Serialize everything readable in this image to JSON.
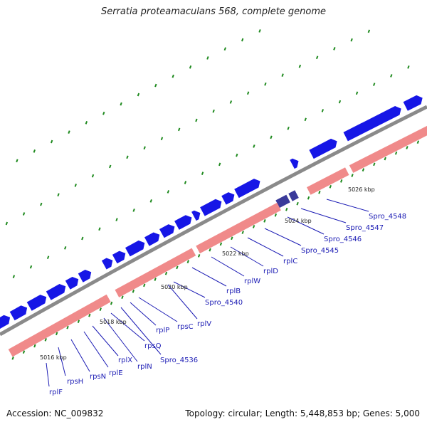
{
  "title": "Serratia proteamaculans 568, complete genome",
  "footer": {
    "accession": "Accession: NC_009832",
    "topology": "Topology: circular; Length: 5,448,853 bp; Genes: 5,000"
  },
  "colors": {
    "backbone": "#8a8a8a",
    "forward_gene": "#1616e6",
    "reverse_gene": "#f08a8a",
    "selected_gene": "#3a3a9a",
    "ticks": "#1f8a1f",
    "label": "#1b1bb4"
  },
  "scale_labels": [
    {
      "text": "5016 kbp"
    },
    {
      "text": "5018 kbp"
    },
    {
      "text": "5020 kbp"
    },
    {
      "text": "5022 kbp"
    },
    {
      "text": "5024 kbp"
    },
    {
      "text": "5026 kbp"
    }
  ],
  "gene_labels": [
    {
      "text": "rplF"
    },
    {
      "text": "rpsH"
    },
    {
      "text": "rpsN"
    },
    {
      "text": "rplE"
    },
    {
      "text": "rplX"
    },
    {
      "text": "rplN"
    },
    {
      "text": "rpsQ"
    },
    {
      "text": "Spro_4536"
    },
    {
      "text": "rplP"
    },
    {
      "text": "rpsC"
    },
    {
      "text": "rplV"
    },
    {
      "text": "Spro_4540"
    },
    {
      "text": "rplB"
    },
    {
      "text": "rplW"
    },
    {
      "text": "rplD"
    },
    {
      "text": "rplC"
    },
    {
      "text": "Spro_4545"
    },
    {
      "text": "Spro_4546"
    },
    {
      "text": "Spro_4547"
    },
    {
      "text": "Spro_4548"
    }
  ]
}
